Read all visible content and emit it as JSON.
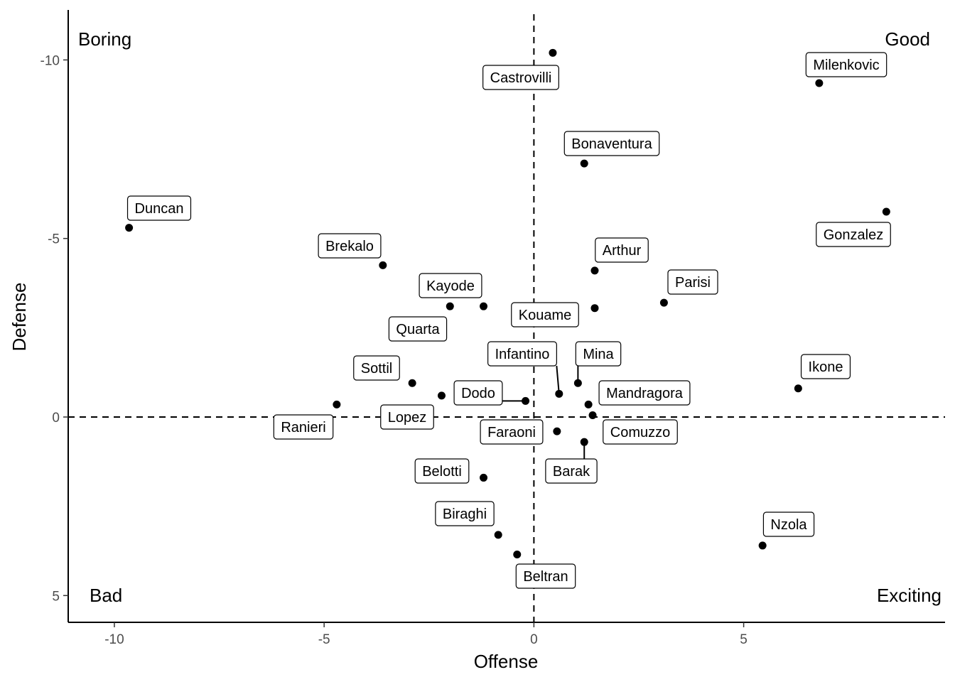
{
  "chart_data": {
    "type": "scatter",
    "xlabel": "Offense",
    "ylabel": "Defense",
    "xlim": [
      -11.1,
      9.8
    ],
    "ylim": [
      5.75,
      -11.4
    ],
    "y_reversed": true,
    "x_ticks": [
      -10,
      -5,
      0,
      5
    ],
    "y_ticks": [
      -10,
      -5,
      0,
      5
    ],
    "x_tick_labels": [
      "-10",
      "-5",
      "0",
      "5"
    ],
    "y_tick_labels": [
      "-10",
      "-5",
      "0",
      "5"
    ],
    "reference_lines": {
      "x": 0,
      "y": 0,
      "style": "dashed"
    },
    "grid": false,
    "quadrant_labels": {
      "top_left": "Boring",
      "top_right": "Good",
      "bottom_left": "Bad",
      "bottom_right": "Exciting"
    },
    "points": [
      {
        "label": "Castrovilli",
        "x": 0.45,
        "y": -10.2
      },
      {
        "label": "Milenkovic",
        "x": 6.8,
        "y": -9.35
      },
      {
        "label": "Bonaventura",
        "x": 1.2,
        "y": -7.1
      },
      {
        "label": "Duncan",
        "x": -9.65,
        "y": -5.3
      },
      {
        "label": "Gonzalez",
        "x": 8.4,
        "y": -5.75
      },
      {
        "label": "Brekalo",
        "x": -3.6,
        "y": -4.25
      },
      {
        "label": "Arthur",
        "x": 1.45,
        "y": -4.1
      },
      {
        "label": "Parisi",
        "x": 3.1,
        "y": -3.2
      },
      {
        "label": "Kayode",
        "x": -1.2,
        "y": -3.1
      },
      {
        "label": "Quarta",
        "x": -2.0,
        "y": -3.1
      },
      {
        "label": "Kouame",
        "x": 1.45,
        "y": -3.05
      },
      {
        "label": "Infantino",
        "x": 0.6,
        "y": -0.65
      },
      {
        "label": "Mina",
        "x": 1.05,
        "y": -0.95
      },
      {
        "label": "Ikone",
        "x": 6.3,
        "y": -0.8
      },
      {
        "label": "Sottil",
        "x": -2.9,
        "y": -0.95
      },
      {
        "label": "Lopez",
        "x": -2.2,
        "y": -0.6
      },
      {
        "label": "Dodo",
        "x": -0.2,
        "y": -0.45
      },
      {
        "label": "Mandragora",
        "x": 1.3,
        "y": -0.35
      },
      {
        "label": "Ranieri",
        "x": -4.7,
        "y": -0.35
      },
      {
        "label": "Comuzzo",
        "x": 1.4,
        "y": -0.05
      },
      {
        "label": "Faraoni",
        "x": 0.55,
        "y": 0.4
      },
      {
        "label": "Barak",
        "x": 1.2,
        "y": 0.7
      },
      {
        "label": "Belotti",
        "x": -1.2,
        "y": 1.7
      },
      {
        "label": "Biraghi",
        "x": -0.85,
        "y": 3.3
      },
      {
        "label": "Beltran",
        "x": -0.4,
        "y": 3.85
      },
      {
        "label": "Nzola",
        "x": 5.45,
        "y": 3.6
      }
    ]
  }
}
